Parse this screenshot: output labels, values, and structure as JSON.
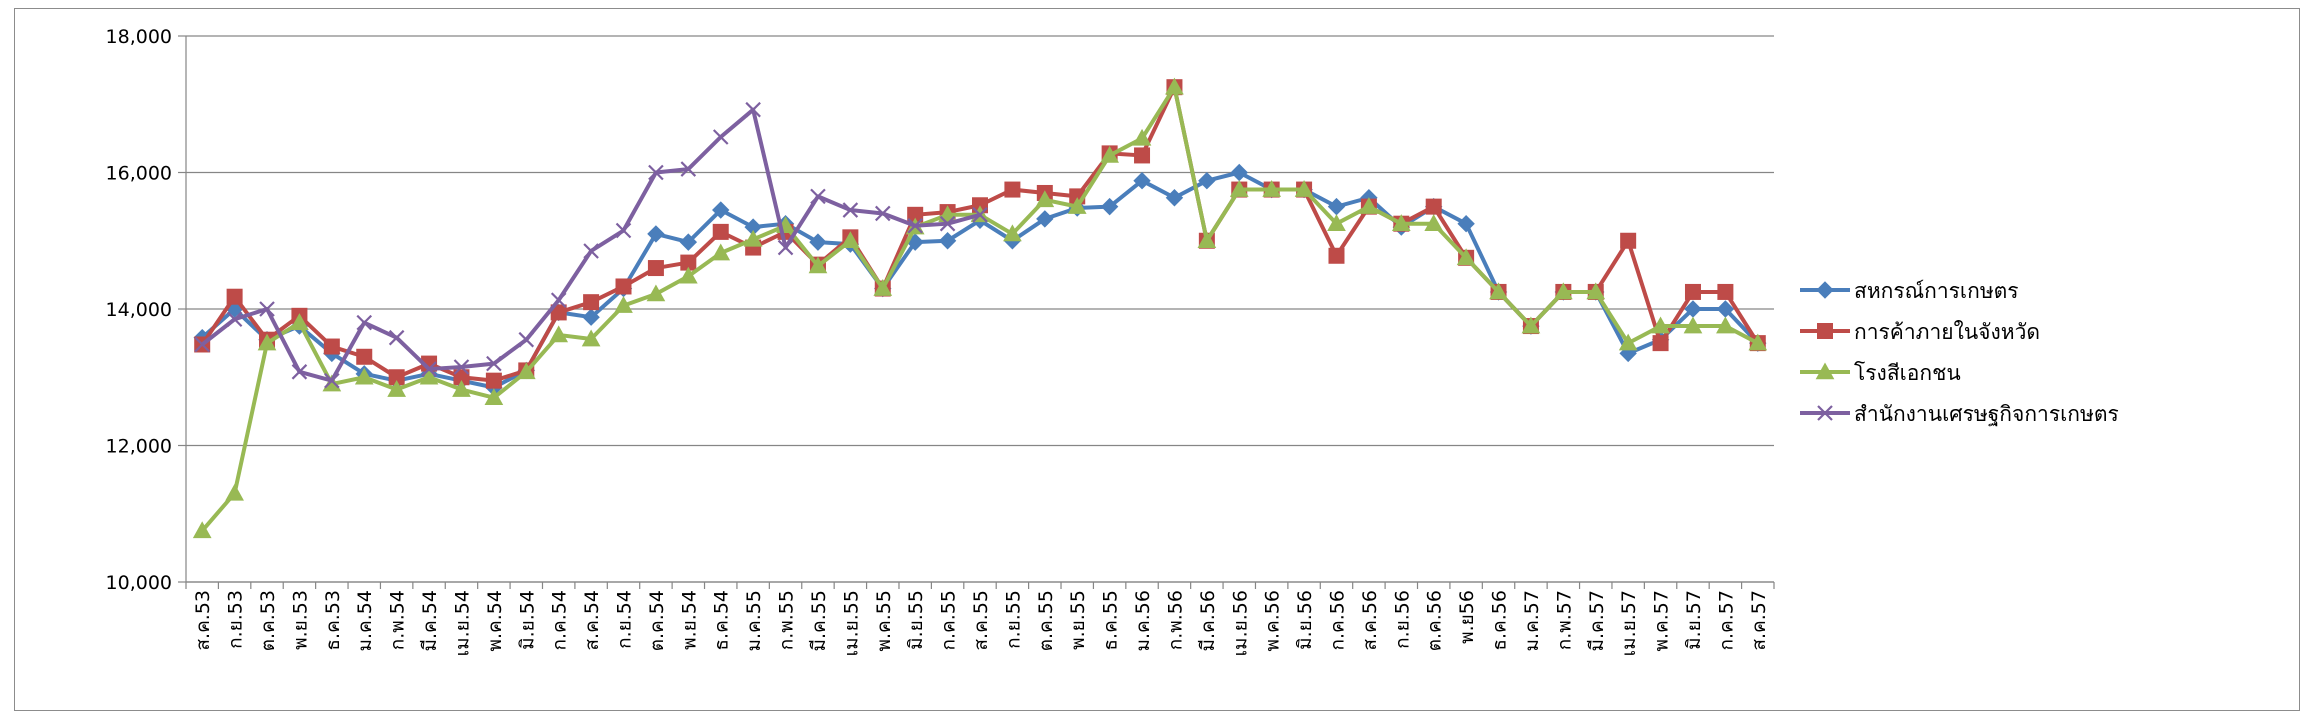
{
  "chart_data": {
    "type": "line",
    "title": "",
    "xlabel": "",
    "ylabel": "",
    "ylim": [
      10000,
      18000
    ],
    "yticks": [
      "10,000",
      "12,000",
      "14,000",
      "16,000",
      "18,000"
    ],
    "grid": "horizontal",
    "legend_position": "right",
    "categories": [
      "ส.ค.53",
      "ก.ย.53",
      "ต.ค.53",
      "พ.ย.53",
      "ธ.ค.53",
      "ม.ค.54",
      "ก.พ.54",
      "มี.ค.54",
      "เม.ย.54",
      "พ.ค.54",
      "มิ.ย.54",
      "ก.ค.54",
      "ส.ค.54",
      "ก.ย.54",
      "ต.ค.54",
      "พ.ย.54",
      "ธ.ค.54",
      "ม.ค.55",
      "ก.พ.55",
      "มี.ค.55",
      "เม.ย.55",
      "พ.ค.55",
      "มิ.ย.55",
      "ก.ค.55",
      "ส.ค.55",
      "ก.ย.55",
      "ต.ค.55",
      "พ.ย.55",
      "ธ.ค.55",
      "ม.ค.56",
      "ก.พ.56",
      "มี.ค.56",
      "เม.ย.56",
      "พ.ค.56",
      "มิ.ย.56",
      "ก.ค.56",
      "ส.ค.56",
      "ก.ย.56",
      "ต.ค.56",
      "พ.ย56",
      "ธ.ค.56",
      "ม.ค.57",
      "ก.พ.57",
      "มี.ค.57",
      "เม.ย.57",
      "พ.ค.57",
      "มิ.ย.57",
      "ก.ค.57",
      "ส.ค.57"
    ],
    "series": [
      {
        "name": "สหกรณ์การเกษตร",
        "color": "#4a7ebb",
        "marker": "diamond",
        "values": [
          13580,
          14000,
          13550,
          13750,
          13350,
          13050,
          12950,
          13050,
          12950,
          12850,
          13100,
          13950,
          13880,
          14300,
          15100,
          14980,
          15450,
          15200,
          15250,
          14980,
          14950,
          14300,
          14980,
          15000,
          15300,
          15000,
          15320,
          15480,
          15500,
          15880,
          15630,
          15880,
          16000,
          15750,
          15750,
          15500,
          15630,
          15200,
          15500,
          15250,
          14250,
          13750,
          14250,
          14250,
          13350,
          13550,
          14000,
          14000,
          13500
        ]
      },
      {
        "name": "การค้าภายในจังหวัด",
        "color": "#be4b48",
        "marker": "square",
        "values": [
          13480,
          14180,
          13550,
          13900,
          13450,
          13300,
          13000,
          13200,
          13000,
          12950,
          13100,
          13950,
          14100,
          14330,
          14600,
          14680,
          15130,
          14900,
          15130,
          14650,
          15050,
          14300,
          15380,
          15420,
          15520,
          15750,
          15700,
          15650,
          16280,
          16250,
          17250,
          15000,
          15750,
          15750,
          15750,
          14780,
          15500,
          15250,
          15500,
          14750,
          14250,
          13750,
          14250,
          14250,
          15000,
          13500,
          14250,
          14250,
          13500
        ]
      },
      {
        "name": "โรงสีเอกชน",
        "color": "#98b954",
        "marker": "triangle",
        "values": [
          10750,
          11300,
          13500,
          13800,
          12900,
          13000,
          12820,
          13000,
          12820,
          12700,
          13080,
          13620,
          13560,
          14050,
          14220,
          14480,
          14820,
          15020,
          15220,
          14630,
          15000,
          14300,
          15200,
          15380,
          15380,
          15100,
          15600,
          15500,
          16250,
          16500,
          17250,
          15000,
          15750,
          15750,
          15750,
          15250,
          15500,
          15250,
          15250,
          14750,
          14250,
          13750,
          14250,
          14250,
          13500,
          13750,
          13750,
          13750,
          13500
        ]
      },
      {
        "name": "สำนักงานเศรษฐกิจการเกษตร",
        "color": "#7d60a0",
        "marker": "x",
        "values": [
          13480,
          13850,
          14000,
          13080,
          12950,
          13800,
          13580,
          13120,
          13150,
          13200,
          13550,
          14130,
          14850,
          15150,
          16000,
          16050,
          16520,
          16920,
          14900,
          15650,
          15450,
          15400,
          15220,
          15250,
          15380,
          null,
          null,
          null,
          null,
          null,
          null,
          null,
          null,
          null,
          null,
          null,
          null,
          null,
          null,
          null,
          null,
          null,
          null,
          null,
          null,
          null,
          null,
          null,
          null
        ]
      }
    ]
  }
}
